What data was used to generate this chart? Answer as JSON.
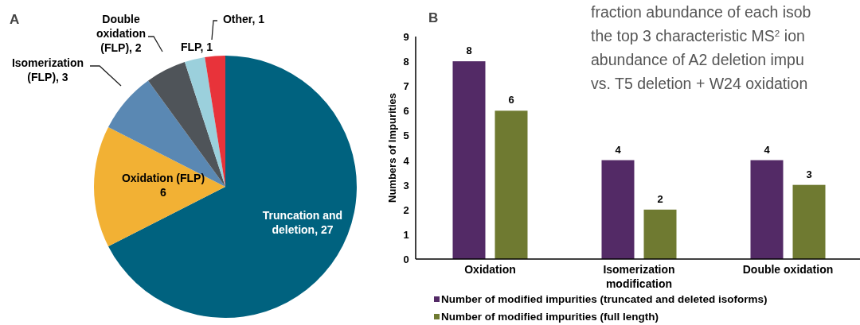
{
  "chart_data": [
    {
      "type": "pie",
      "title": "A",
      "categories": [
        "Truncation and deletion, 27",
        "Oxidation (FLP) 6",
        "Isomerization (FLP), 3",
        "Double oxidation (FLP), 2",
        "FLP, 1",
        "Other, 1"
      ],
      "values": [
        27,
        6,
        3,
        2,
        1,
        1
      ],
      "colors": [
        "#00627f",
        "#f2b134",
        "#5a88b3",
        "#4f5459",
        "#9bd0dc",
        "#e8333a"
      ]
    },
    {
      "type": "bar",
      "title": "B",
      "ylabel": "Numbers of Impurities",
      "categories": [
        "Oxidation",
        "Isomerization modification",
        "Double oxidation"
      ],
      "series": [
        {
          "name": "Number of modified impurities (truncated and deleted isoforms)",
          "color": "#532a66",
          "values": [
            8,
            4,
            4
          ]
        },
        {
          "name": "Number of modified impurities (full length)",
          "color": "#6f7a31",
          "values": [
            6,
            2,
            3
          ]
        }
      ],
      "ylim": [
        0,
        9
      ],
      "yticks": [
        0,
        1,
        2,
        3,
        4,
        5,
        6,
        7,
        8,
        9
      ],
      "grid": false,
      "legend": "bottom",
      "data_labels": true,
      "annotations": [
        "fraction abundance of each isob",
        "the top 3 characteristic MS$^{2}$ ion",
        "abundance of A2 deletion impu",
        "vs. T5 deletion + W24 oxidation"
      ]
    }
  ]
}
